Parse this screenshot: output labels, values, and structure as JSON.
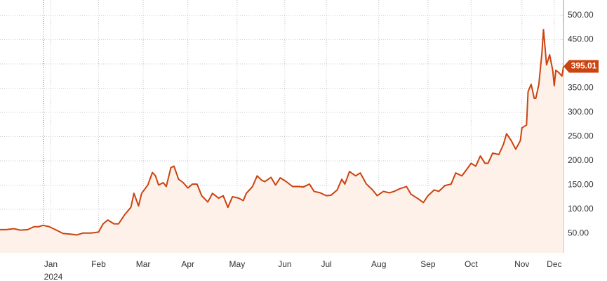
{
  "chart_data": {
    "type": "area",
    "x": [
      -28,
      -24,
      -19,
      -15,
      -10,
      -6,
      -3,
      0,
      4,
      8,
      13,
      17,
      22,
      26,
      31,
      36,
      39,
      42,
      46,
      49,
      53,
      57,
      59,
      62,
      64,
      68,
      71,
      73,
      75,
      78,
      80,
      83,
      85,
      88,
      91,
      94,
      97,
      100,
      103,
      107,
      110,
      114,
      117,
      120,
      123,
      127,
      130,
      132,
      136,
      139,
      142,
      144,
      148,
      151,
      154,
      158,
      162,
      166,
      169,
      173,
      176,
      180,
      184,
      187,
      191,
      194,
      196,
      199,
      203,
      206,
      210,
      214,
      217,
      221,
      225,
      228,
      232,
      236,
      239,
      243,
      247,
      250,
      254,
      257,
      261,
      265,
      268,
      272,
      276,
      278,
      281,
      284,
      287,
      289,
      292,
      296,
      299,
      301,
      304,
      307,
      310,
      311,
      314,
      315,
      317,
      319,
      320,
      322,
      324,
      325,
      327,
      329,
      331,
      332,
      333,
      335,
      337,
      338
    ],
    "values": [
      58,
      58,
      60,
      57,
      58,
      64,
      64,
      67,
      64,
      58,
      50,
      49,
      47,
      51,
      51,
      53,
      70,
      78,
      70,
      70,
      89,
      104,
      133,
      107,
      133,
      150,
      176,
      169,
      150,
      155,
      147,
      186,
      189,
      162,
      155,
      144,
      152,
      152,
      128,
      115,
      133,
      123,
      128,
      104,
      126,
      123,
      118,
      133,
      147,
      169,
      160,
      157,
      166,
      150,
      165,
      157,
      147,
      147,
      146,
      152,
      137,
      134,
      128,
      129,
      140,
      162,
      152,
      178,
      169,
      175,
      152,
      140,
      128,
      137,
      134,
      137,
      143,
      147,
      131,
      123,
      114,
      128,
      140,
      137,
      149,
      152,
      175,
      169,
      186,
      195,
      189,
      210,
      195,
      195,
      216,
      213,
      234,
      256,
      242,
      224,
      242,
      268,
      274,
      343,
      358,
      329,
      329,
      358,
      423,
      471,
      398,
      419,
      387,
      355,
      387,
      382,
      375,
      395.01
    ],
    "last_value": 395.01,
    "color": "#cc4310",
    "fill": "#fdf1ea",
    "xlim": [
      -28,
      338
    ],
    "xticks": [
      {
        "value": 5,
        "label": "Jan"
      },
      {
        "value": 36,
        "label": "Feb"
      },
      {
        "value": 65,
        "label": "Mar"
      },
      {
        "value": 94,
        "label": "Apr"
      },
      {
        "value": 126,
        "label": "May"
      },
      {
        "value": 157,
        "label": "Jun"
      },
      {
        "value": 184,
        "label": "Jul"
      },
      {
        "value": 218,
        "label": "Aug"
      },
      {
        "value": 250,
        "label": "Sep"
      },
      {
        "value": 278,
        "label": "Oct"
      },
      {
        "value": 311,
        "label": "Nov"
      },
      {
        "value": 332,
        "label": "Dec"
      }
    ],
    "year_label": "2024",
    "ylim": [
      10,
      532
    ],
    "yticks": [
      {
        "value": 50,
        "label": "50.00"
      },
      {
        "value": 100,
        "label": "100.00"
      },
      {
        "value": 150,
        "label": "150.00"
      },
      {
        "value": 200,
        "label": "200.00"
      },
      {
        "value": 250,
        "label": "250.00"
      },
      {
        "value": 300,
        "label": "300.00"
      },
      {
        "value": 350,
        "label": "350.00"
      },
      {
        "value": 400,
        "label": "400.00"
      },
      {
        "value": 450,
        "label": "450.00"
      },
      {
        "value": 500,
        "label": "500.00"
      }
    ],
    "grid": true
  }
}
